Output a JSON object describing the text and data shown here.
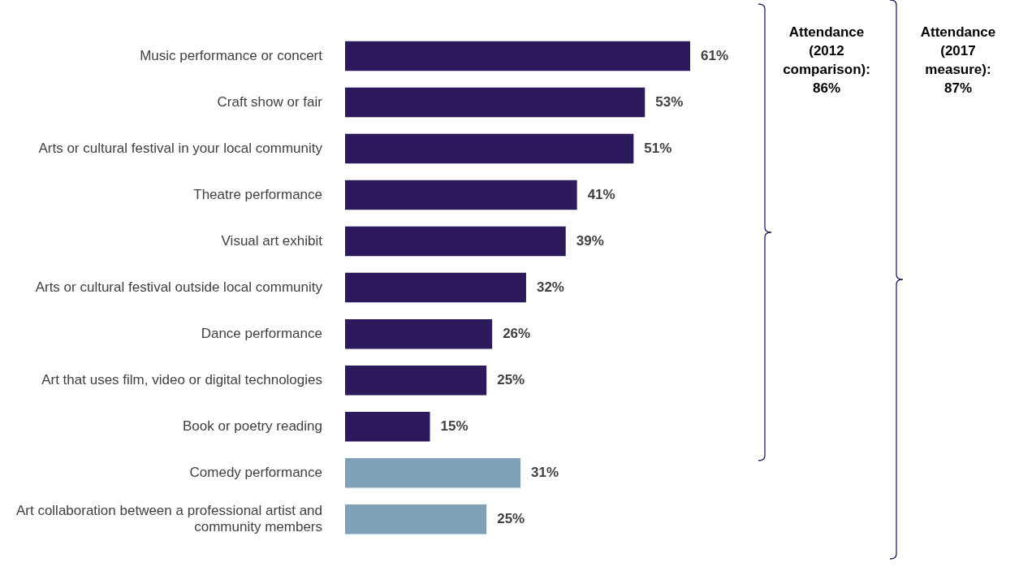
{
  "chart_data": {
    "type": "bar",
    "orientation": "horizontal",
    "legend": false,
    "tick_labels": "y",
    "value_labels": [
      "61%",
      "53%",
      "51%",
      "41%",
      "39%",
      "32%",
      "26%",
      "25%",
      "15%",
      "31%",
      "25%"
    ],
    "categories": [
      "Music performance or concert",
      "Craft show or fair",
      "Arts or cultural festival in your local community",
      "Theatre performance",
      "Visual art exhibit",
      "Arts or cultural festival outside local community",
      "Dance performance",
      "Art that uses film, video or digital technologies",
      "Book or poetry reading",
      "Comedy performance",
      "Art collaboration between a professional artist and community members"
    ],
    "values": [
      61,
      53,
      51,
      41,
      39,
      32,
      26,
      25,
      15,
      31,
      25
    ],
    "colors": [
      "#2d1a5c",
      "#2d1a5c",
      "#2d1a5c",
      "#2d1a5c",
      "#2d1a5c",
      "#2d1a5c",
      "#2d1a5c",
      "#2d1a5c",
      "#2d1a5c",
      "#7fa1b8",
      "#7fa1b8"
    ],
    "annotations": [
      "Attendance (2012 comparison): 86%",
      "Attendance (2017 measure): 87%"
    ]
  }
}
